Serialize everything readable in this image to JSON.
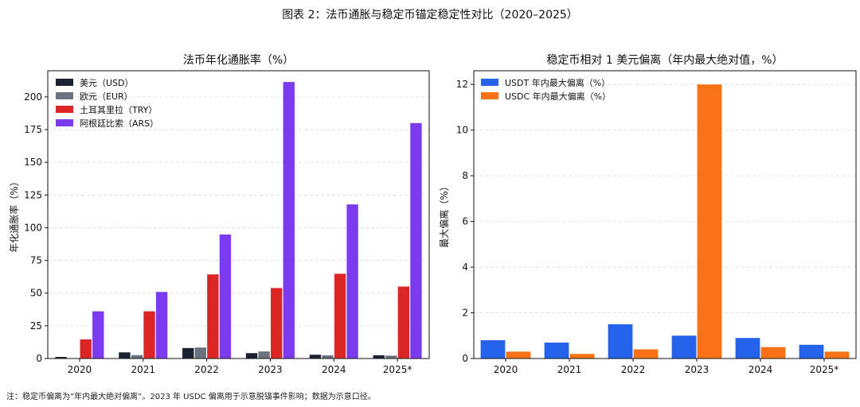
{
  "suptitle": "图表 2：法币通胀与稳定币锚定稳定性对比（2020–2025）",
  "footnote": "注：稳定币偏离为“年内最大绝对偏离”。2023 年 USDC 偏离用于示意脱锚事件影响；数据为示意口径。",
  "chart_data": [
    {
      "type": "bar",
      "title": "法币年化通胀率（%）",
      "xlabel": "",
      "ylabel": "年化通胀率（%）",
      "categories": [
        "2020",
        "2021",
        "2022",
        "2023",
        "2024",
        "2025*"
      ],
      "ylim": [
        0,
        220
      ],
      "yticks": [
        0,
        25,
        50,
        75,
        100,
        125,
        150,
        175,
        200
      ],
      "grid": true,
      "legend_position": "top-left",
      "series": [
        {
          "name": "美元（USD）",
          "color": "#1b2333",
          "values": [
            1.2,
            4.7,
            8.0,
            4.1,
            2.9,
            2.5
          ]
        },
        {
          "name": "欧元（EUR）",
          "color": "#6b7280",
          "values": [
            0.3,
            2.6,
            8.4,
            5.4,
            2.4,
            2.2
          ]
        },
        {
          "name": "土耳其里拉（TRY）",
          "color": "#dc2626",
          "values": [
            14.6,
            36.1,
            64.3,
            53.9,
            64.8,
            55.0
          ]
        },
        {
          "name": "阿根廷比索（ARS）",
          "color": "#7c3aed",
          "values": [
            36.1,
            50.9,
            94.8,
            211.4,
            117.8,
            180.0
          ]
        }
      ]
    },
    {
      "type": "bar",
      "title": "稳定币相对 1 美元偏离（年内最大绝对值，%）",
      "xlabel": "",
      "ylabel": "最大偏离（%）",
      "categories": [
        "2020",
        "2021",
        "2022",
        "2023",
        "2024",
        "2025*"
      ],
      "ylim": [
        0,
        12.6
      ],
      "yticks": [
        0,
        2,
        4,
        6,
        8,
        10,
        12
      ],
      "grid": true,
      "legend_position": "top-left",
      "series": [
        {
          "name": "USDT 年内最大偏离（%）",
          "color": "#2563eb",
          "values": [
            0.8,
            0.7,
            1.5,
            1.0,
            0.9,
            0.6
          ]
        },
        {
          "name": "USDC 年内最大偏离（%）",
          "color": "#f97316",
          "values": [
            0.3,
            0.2,
            0.4,
            12.0,
            0.5,
            0.3
          ]
        }
      ]
    }
  ]
}
